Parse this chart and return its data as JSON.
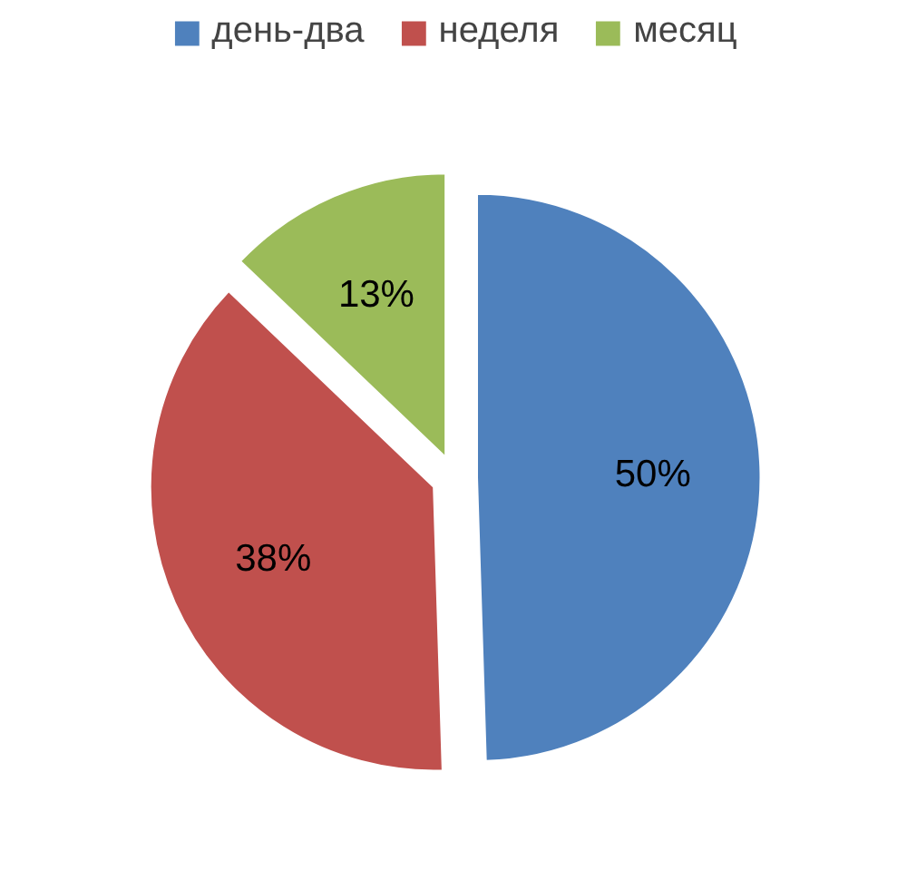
{
  "chart_data": {
    "type": "pie",
    "categories": [
      "день-два",
      "неделя",
      "месяц"
    ],
    "values": [
      50,
      38,
      13
    ],
    "colors": [
      "#4f81bd",
      "#c0504d",
      "#9bbb59"
    ],
    "value_labels": [
      "50%",
      "38%",
      "13%"
    ],
    "legend": "top"
  }
}
